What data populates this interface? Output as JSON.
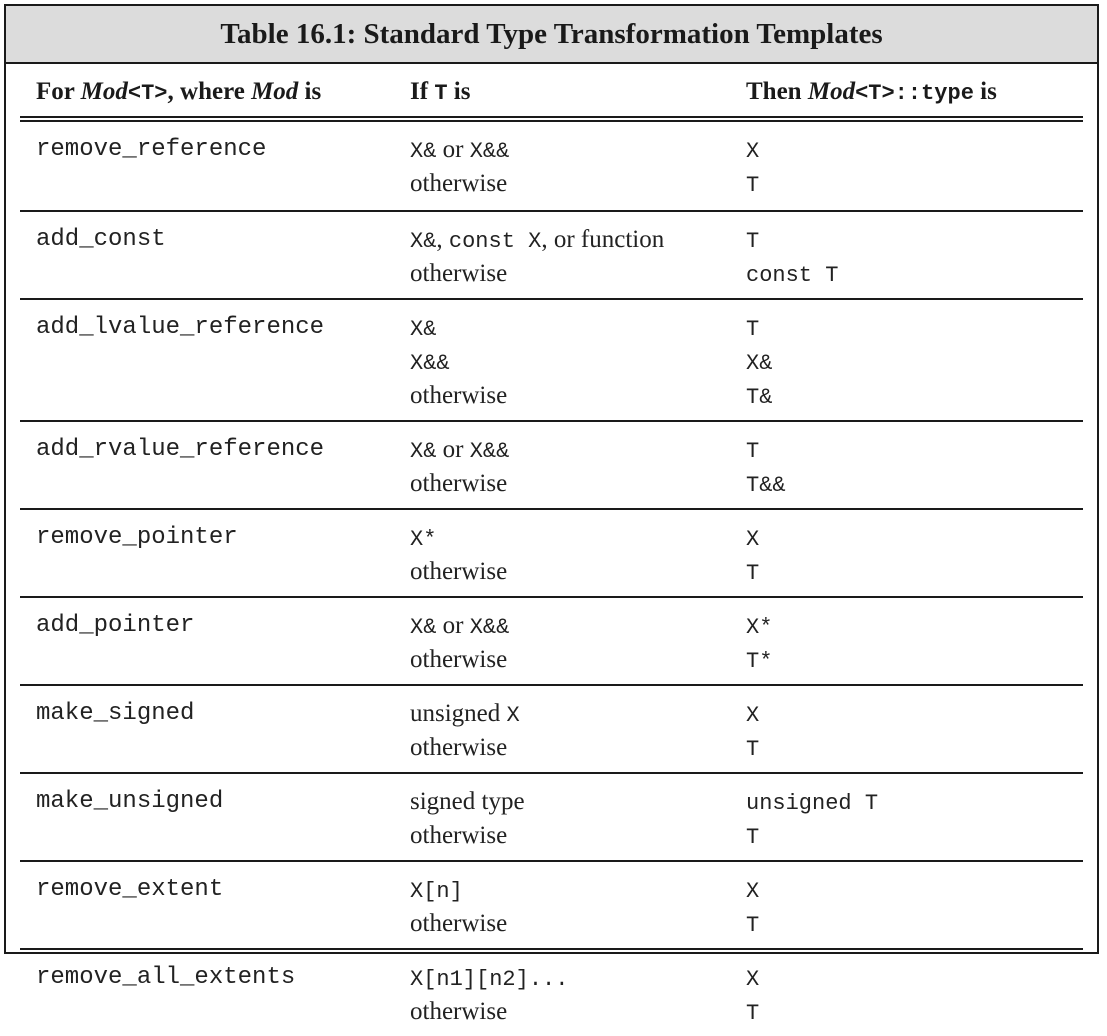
{
  "title": "Table 16.1: Standard Type Transformation Templates",
  "header": {
    "col1_prefix": "For ",
    "col1_mod": "Mod",
    "col1_code": "<T>",
    "col1_mid": ", where ",
    "col1_mod2": "Mod",
    "col1_suffix": " is",
    "col2_prefix": "If ",
    "col2_code": "T",
    "col2_suffix": " is",
    "col3_prefix": "Then ",
    "col3_mod": "Mod",
    "col3_code": "<T>::type",
    "col3_suffix": " is"
  },
  "rows": [
    {
      "name": "remove_reference",
      "conditions": [
        {
          "prefix": "X&",
          "text": " or ",
          "code": "X&&"
        },
        {
          "text": "otherwise"
        }
      ],
      "results": [
        "X",
        "T"
      ]
    },
    {
      "name": "add_const",
      "conditions": [
        {
          "prefix": "X&",
          "text": ", ",
          "code": "const X",
          "text2": ", or function"
        },
        {
          "text": "otherwise"
        }
      ],
      "results": [
        "T",
        "const T"
      ]
    },
    {
      "name": "add_lvalue_reference",
      "conditions": [
        {
          "prefix": "X&"
        },
        {
          "prefix": "X&&"
        },
        {
          "text": "otherwise"
        }
      ],
      "results": [
        "T",
        "X&",
        "T&"
      ]
    },
    {
      "name": "add_rvalue_reference",
      "conditions": [
        {
          "prefix": "X&",
          "text": " or ",
          "code": "X&&"
        },
        {
          "text": "otherwise"
        }
      ],
      "results": [
        "T",
        "T&&"
      ]
    },
    {
      "name": "remove_pointer",
      "conditions": [
        {
          "prefix": "X*"
        },
        {
          "text": "otherwise"
        }
      ],
      "results": [
        "X",
        "T"
      ]
    },
    {
      "name": "add_pointer",
      "conditions": [
        {
          "prefix": "X&",
          "text": " or ",
          "code": "X&&"
        },
        {
          "text": "otherwise"
        }
      ],
      "results": [
        "X*",
        "T*"
      ]
    },
    {
      "name": "make_signed",
      "conditions": [
        {
          "text": "unsigned ",
          "code": "X"
        },
        {
          "text": "otherwise"
        }
      ],
      "results": [
        "X",
        "T"
      ]
    },
    {
      "name": "make_unsigned",
      "conditions": [
        {
          "text": "signed type"
        },
        {
          "text": "otherwise"
        }
      ],
      "results": [
        "unsigned T",
        "T"
      ]
    },
    {
      "name": "remove_extent",
      "conditions": [
        {
          "prefix": "X[n]"
        },
        {
          "text": "otherwise"
        }
      ],
      "results": [
        "X",
        "T"
      ]
    },
    {
      "name": "remove_all_extents",
      "conditions": [
        {
          "prefix": "X[n1][n2]..."
        },
        {
          "text": "otherwise"
        }
      ],
      "results": [
        "X",
        "T"
      ]
    }
  ]
}
